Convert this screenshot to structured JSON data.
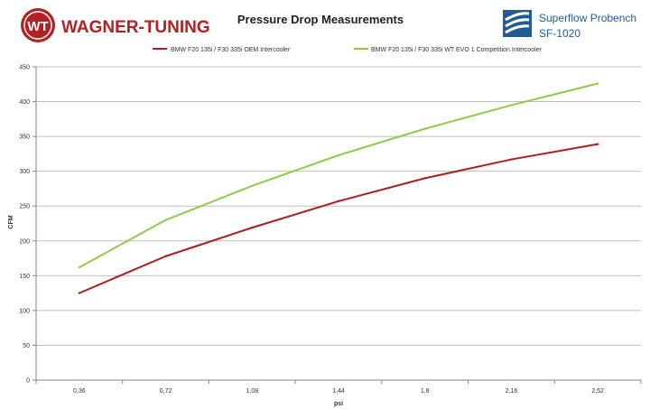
{
  "header": {
    "brand_name": "WAGNER-TUNING",
    "brand_mark_letters": "WT",
    "bench_name": "Superflow Probench",
    "bench_model": "SF-1020"
  },
  "colors": {
    "brand": "#b52025",
    "oem_series": "#b01c22",
    "evo_series": "#92c94a",
    "superflow_blue": "#1f5c95",
    "grid": "#bfbfbf",
    "axis": "#868686"
  },
  "chart_data": {
    "type": "line",
    "title": "Pressure Drop Measurements",
    "xlabel": "psi",
    "ylabel": "CFM",
    "categories": [
      "0,36",
      "0,72",
      "1,08",
      "1,44",
      "1,8",
      "2,16",
      "2,52"
    ],
    "ylim": [
      0,
      450
    ],
    "yticks": [
      0,
      50,
      100,
      150,
      200,
      250,
      300,
      350,
      400,
      450
    ],
    "grid": true,
    "legend_position": "top",
    "series": [
      {
        "name": "BMW F20 135i / F30 335i OEM Intercooler",
        "color": "#b01c22",
        "values": [
          125,
          178,
          219,
          257,
          290,
          317,
          339
        ]
      },
      {
        "name": "BMW F20 135i / F30 335i WT EVO 1 Competition Intercooler",
        "color": "#92c94a",
        "values": [
          162,
          230,
          279,
          323,
          361,
          395,
          426
        ]
      }
    ]
  }
}
